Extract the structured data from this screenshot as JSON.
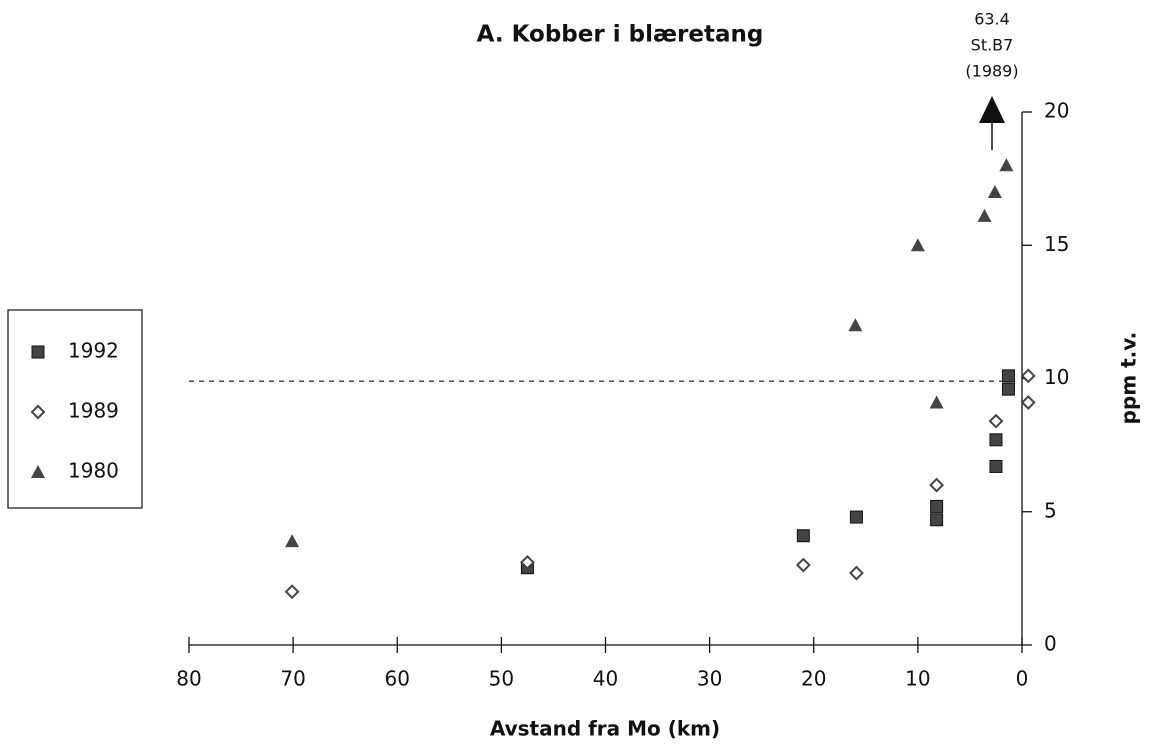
{
  "chart_data": {
    "type": "scatter",
    "title": "A. Kobber i blæretang",
    "x_label": "Avstand fra Mo (km)",
    "y_label": "ppm t.v.",
    "xlim": [
      80,
      0
    ],
    "xticks": [
      80,
      70,
      60,
      50,
      40,
      30,
      20,
      10,
      0
    ],
    "ylim": [
      0,
      20
    ],
    "yticks": [
      0,
      5,
      10,
      15,
      20
    ],
    "reference_line": 9.9,
    "annotation": [
      "63.4",
      "St.B7",
      "(1989)"
    ],
    "series": [
      {
        "name": "1992",
        "marker": "square",
        "color": "#444444",
        "x": [
          47.5,
          21,
          15.9,
          8.2,
          8.2,
          2.5,
          2.5,
          1.3,
          1.3
        ],
        "values": [
          2.9,
          4.1,
          4.8,
          5.2,
          4.7,
          6.7,
          7.7,
          9.6,
          10.1
        ]
      },
      {
        "name": "1989",
        "marker": "diamond",
        "color": "#444444",
        "x": [
          70.1,
          47.5,
          21,
          15.9,
          8.2,
          2.5,
          -0.6,
          -0.6
        ],
        "values": [
          2.0,
          3.1,
          3.0,
          2.7,
          6.0,
          8.4,
          9.1,
          10.1
        ]
      },
      {
        "name": "1980",
        "marker": "triangle",
        "color": "#444444",
        "x": [
          70.1,
          16.0,
          10.0,
          3.6,
          2.6,
          1.5,
          8.2
        ],
        "values": [
          3.9,
          12.0,
          15.0,
          16.1,
          17.0,
          18.0,
          9.1
        ]
      }
    ]
  }
}
